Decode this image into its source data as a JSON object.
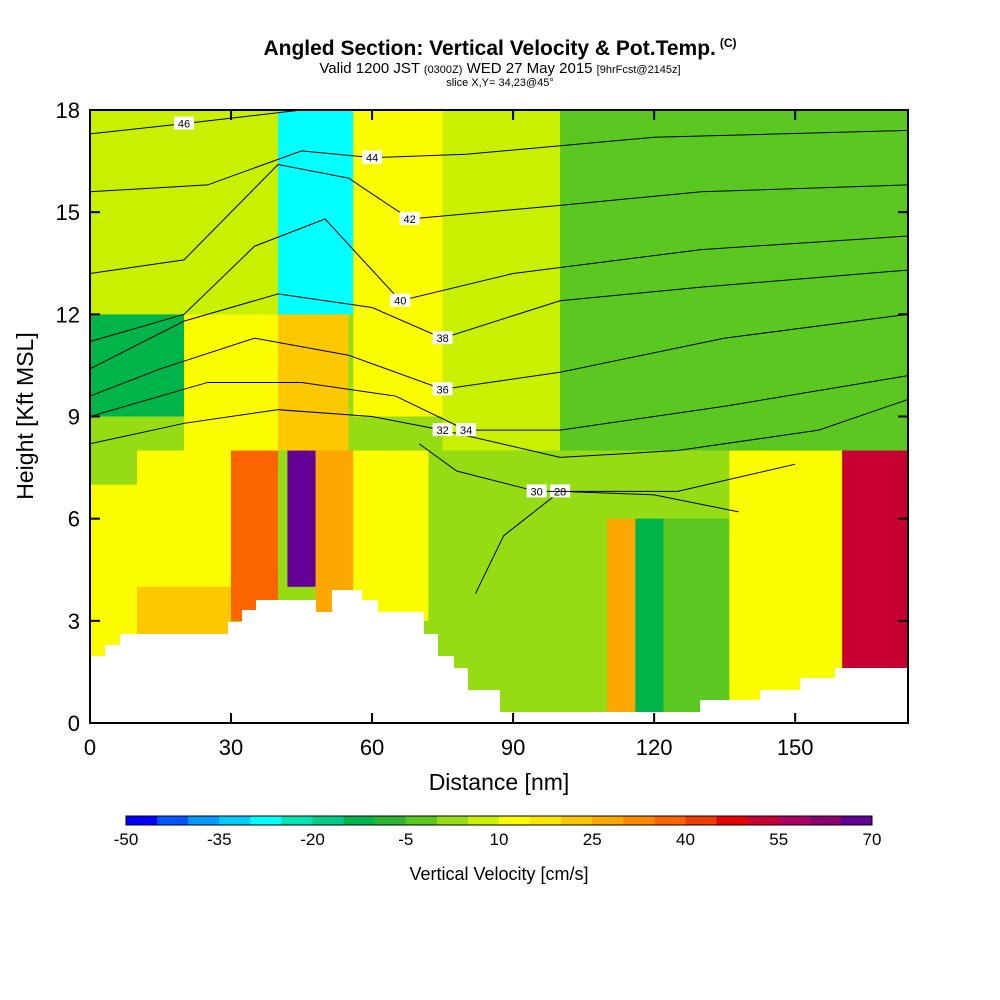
{
  "header": {
    "title": "Angled Section: Vertical Velocity & Pot.Temp.",
    "title_unit": "(C)",
    "valid_prefix": "Valid 1200 JST",
    "valid_utc": "(0300Z)",
    "valid_date": "WED 27 May 2015",
    "forecast": "[9hrFcst@2145z]",
    "slice": "slice X,Y= 34,23@45°"
  },
  "chart_data": {
    "type": "heatmap",
    "title": "Angled Section: Vertical Velocity & Pot.Temp.",
    "xlabel": "Distance [nm]",
    "ylabel": "Height [Kft MSL]",
    "xlim": [
      0,
      174
    ],
    "ylim": [
      0,
      18
    ],
    "x_ticks": [
      0,
      30,
      60,
      90,
      120,
      150
    ],
    "y_ticks": [
      0,
      3,
      6,
      9,
      12,
      15,
      18
    ],
    "colorbar": {
      "label": "Vertical Velocity [cm/s]",
      "min": -50,
      "max": 70,
      "step": 5,
      "tick_labels": [
        -50,
        -35,
        -20,
        -5,
        10,
        25,
        40,
        55,
        70
      ],
      "colors": [
        "#0000ff",
        "#0055ff",
        "#0099ff",
        "#00ccff",
        "#00ffff",
        "#00e6b4",
        "#00cc88",
        "#00b44a",
        "#2db432",
        "#5ac820",
        "#96dc14",
        "#c8f000",
        "#fcfc00",
        "#fce600",
        "#fcc800",
        "#fca800",
        "#fc8800",
        "#fc6400",
        "#f03c00",
        "#e60000",
        "#c80032",
        "#aa0064",
        "#8c006e",
        "#640096"
      ]
    },
    "vertical_velocity_cells": [
      {
        "x": [
          0,
          10
        ],
        "y": [
          0,
          7
        ],
        "value": 12
      },
      {
        "x": [
          10,
          30
        ],
        "y": [
          0,
          4
        ],
        "value": 20
      },
      {
        "x": [
          10,
          30
        ],
        "y": [
          4,
          8
        ],
        "value": 12
      },
      {
        "x": [
          30,
          40
        ],
        "y": [
          3,
          8
        ],
        "value": 35
      },
      {
        "x": [
          42,
          48
        ],
        "y": [
          4,
          9
        ],
        "value": 65
      },
      {
        "x": [
          48,
          56
        ],
        "y": [
          3,
          8
        ],
        "value": 25
      },
      {
        "x": [
          56,
          72
        ],
        "y": [
          3,
          8
        ],
        "value": 12
      },
      {
        "x": [
          72,
          88
        ],
        "y": [
          0,
          8
        ],
        "value": 2
      },
      {
        "x": [
          88,
          110
        ],
        "y": [
          0,
          6
        ],
        "value": 0
      },
      {
        "x": [
          110,
          116
        ],
        "y": [
          0,
          6
        ],
        "value": 25
      },
      {
        "x": [
          116,
          122
        ],
        "y": [
          0,
          6
        ],
        "value": -15
      },
      {
        "x": [
          122,
          136
        ],
        "y": [
          0,
          6
        ],
        "value": -5
      },
      {
        "x": [
          136,
          160
        ],
        "y": [
          0,
          8
        ],
        "value": 10
      },
      {
        "x": [
          160,
          174
        ],
        "y": [
          0,
          9
        ],
        "value": 50
      },
      {
        "x": [
          0,
          20
        ],
        "y": [
          9,
          12
        ],
        "value": -15
      },
      {
        "x": [
          20,
          40
        ],
        "y": [
          8,
          12
        ],
        "value": 10
      },
      {
        "x": [
          40,
          55
        ],
        "y": [
          8,
          12
        ],
        "value": 20
      },
      {
        "x": [
          40,
          56
        ],
        "y": [
          12,
          18
        ],
        "value": -30
      },
      {
        "x": [
          0,
          40
        ],
        "y": [
          12,
          18
        ],
        "value": 8
      },
      {
        "x": [
          56,
          75
        ],
        "y": [
          9,
          18
        ],
        "value": 14
      },
      {
        "x": [
          75,
          100
        ],
        "y": [
          8,
          18
        ],
        "value": 5
      },
      {
        "x": [
          100,
          174
        ],
        "y": [
          8,
          18
        ],
        "value": -2
      }
    ],
    "potential_temperature_contours": [
      {
        "label": "28",
        "points": [
          [
            82,
            3.8
          ],
          [
            88,
            5.5
          ],
          [
            100,
            6.8
          ],
          [
            120,
            6.7
          ],
          [
            138,
            6.2
          ]
        ]
      },
      {
        "label": "30",
        "points": [
          [
            70,
            8.2
          ],
          [
            78,
            7.4
          ],
          [
            95,
            6.8
          ],
          [
            125,
            6.8
          ],
          [
            150,
            7.6
          ]
        ]
      },
      {
        "label": "32",
        "points": [
          [
            0,
            8.2
          ],
          [
            20,
            8.8
          ],
          [
            40,
            9.2
          ],
          [
            60,
            9.0
          ],
          [
            75,
            8.6
          ],
          [
            100,
            7.8
          ],
          [
            125,
            8.0
          ],
          [
            155,
            8.6
          ],
          [
            174,
            9.5
          ]
        ]
      },
      {
        "label": "34",
        "points": [
          [
            0,
            9.0
          ],
          [
            25,
            10.0
          ],
          [
            45,
            10.0
          ],
          [
            65,
            9.6
          ],
          [
            80,
            8.6
          ],
          [
            100,
            8.6
          ],
          [
            135,
            9.3
          ],
          [
            174,
            10.2
          ]
        ]
      },
      {
        "label": "36",
        "points": [
          [
            0,
            9.6
          ],
          [
            15,
            10.4
          ],
          [
            35,
            11.3
          ],
          [
            55,
            10.8
          ],
          [
            75,
            9.8
          ],
          [
            100,
            10.3
          ],
          [
            135,
            11.3
          ],
          [
            174,
            12.0
          ]
        ]
      },
      {
        "label": "38",
        "points": [
          [
            0,
            10.4
          ],
          [
            20,
            11.8
          ],
          [
            40,
            12.6
          ],
          [
            60,
            12.2
          ],
          [
            75,
            11.3
          ],
          [
            100,
            12.4
          ],
          [
            130,
            12.8
          ],
          [
            174,
            13.3
          ]
        ]
      },
      {
        "label": "40",
        "points": [
          [
            0,
            11.2
          ],
          [
            20,
            12.0
          ],
          [
            35,
            14.0
          ],
          [
            50,
            14.8
          ],
          [
            66,
            12.4
          ],
          [
            90,
            13.2
          ],
          [
            130,
            13.9
          ],
          [
            174,
            14.3
          ]
        ]
      },
      {
        "label": "42",
        "points": [
          [
            0,
            13.2
          ],
          [
            20,
            13.6
          ],
          [
            40,
            16.4
          ],
          [
            55,
            16.0
          ],
          [
            68,
            14.8
          ],
          [
            100,
            15.2
          ],
          [
            130,
            15.6
          ],
          [
            174,
            15.8
          ]
        ]
      },
      {
        "label": "44",
        "points": [
          [
            0,
            15.6
          ],
          [
            25,
            15.8
          ],
          [
            45,
            16.8
          ],
          [
            60,
            16.6
          ],
          [
            80,
            16.7
          ],
          [
            120,
            17.2
          ],
          [
            174,
            17.4
          ]
        ]
      },
      {
        "label": "46",
        "points": [
          [
            0,
            17.3
          ],
          [
            20,
            17.6
          ],
          [
            45,
            18.0
          ]
        ]
      }
    ]
  }
}
